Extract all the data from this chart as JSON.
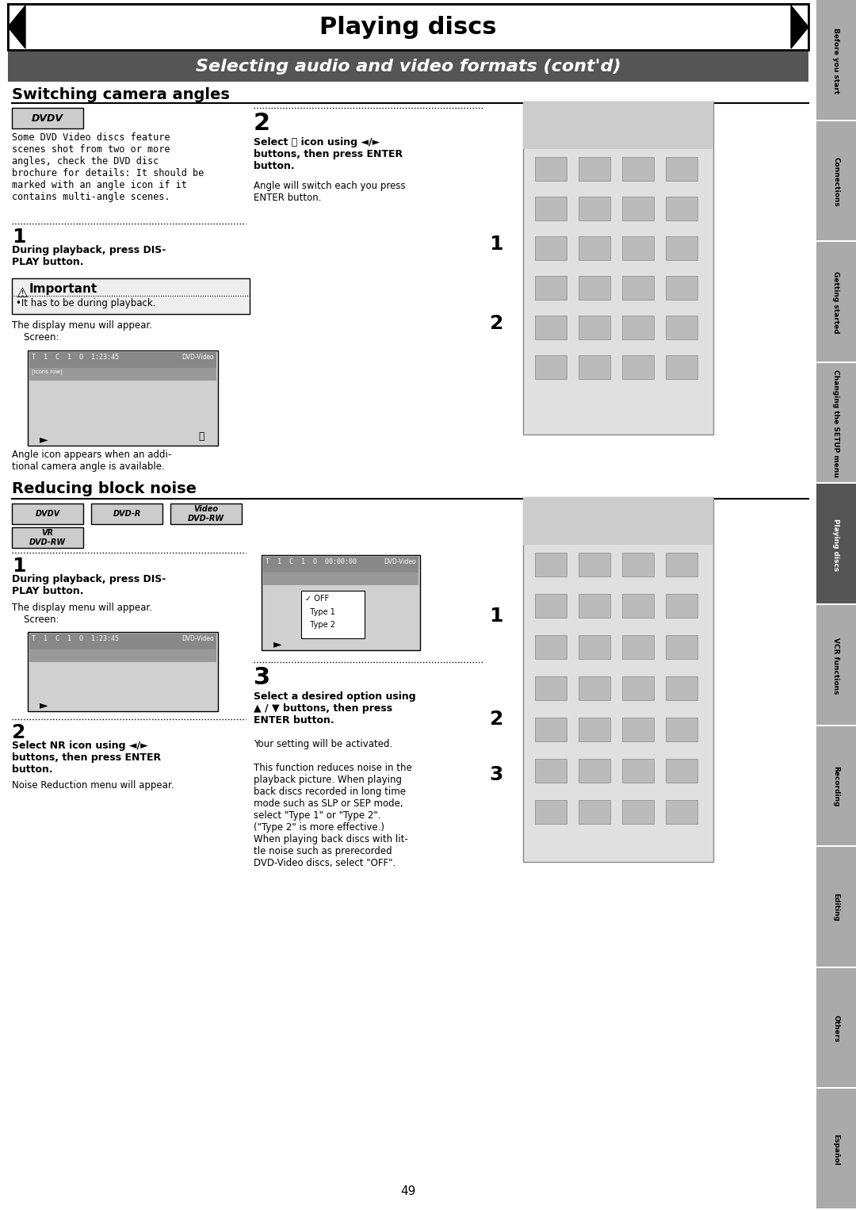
{
  "title": "Playing discs",
  "subtitle": "Selecting audio and video formats (cont'd)",
  "section1_title": "Switching camera angles",
  "section2_title": "Reducing block noise",
  "background_color": "#ffffff",
  "title_bg": "#ffffff",
  "subtitle_bg": "#555555",
  "tab_labels": [
    "Before you start",
    "Connections",
    "Getting started",
    "Changing the SETUP menu",
    "Playing discs",
    "VCR functions",
    "Recording",
    "Editing",
    "Others",
    "Español"
  ],
  "page_number": "49",
  "tab_active_index": 4,
  "tab_active_color": "#555555",
  "tab_inactive_color": "#cccccc"
}
